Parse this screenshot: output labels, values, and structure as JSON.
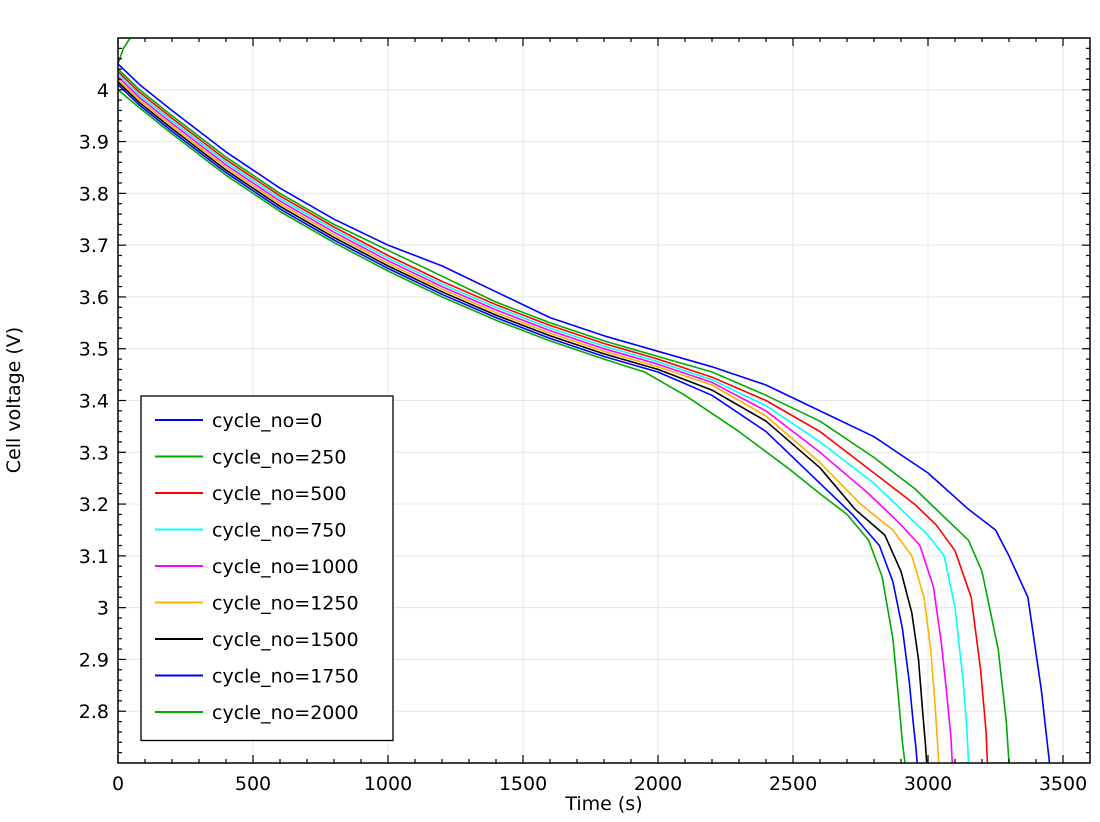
{
  "chart_data": {
    "type": "line",
    "title": "",
    "xlabel": "Time (s)",
    "ylabel": "Cell voltage (V)",
    "xlim": [
      0,
      3600
    ],
    "ylim": [
      2.7,
      4.1
    ],
    "xticks": [
      0,
      500,
      1000,
      1500,
      2000,
      2500,
      3000,
      3500
    ],
    "xtick_labels": [
      "0",
      "500",
      "1000",
      "1500",
      "2000",
      "2500",
      "3000",
      "3500"
    ],
    "yticks": [
      2.8,
      2.9,
      3.0,
      3.1,
      3.2,
      3.3,
      3.4,
      3.5,
      3.6,
      3.7,
      3.8,
      3.9,
      4.0
    ],
    "ytick_labels": [
      "2.8",
      "2.9",
      "3",
      "3.1",
      "3.2",
      "3.3",
      "3.4",
      "3.5",
      "3.6",
      "3.7",
      "3.8",
      "3.9",
      "4"
    ],
    "grid": true,
    "legend_position": "bottom-left",
    "series": [
      {
        "name": "cycle_no=0",
        "color": "#0000ff",
        "x": [
          0,
          80,
          200,
          400,
          600,
          800,
          1000,
          1200,
          1400,
          1600,
          1800,
          2000,
          2200,
          2400,
          2600,
          2800,
          3000,
          3150,
          3250,
          3300,
          3370,
          3420,
          3450
        ],
        "y": [
          4.05,
          4.01,
          3.96,
          3.88,
          3.81,
          3.75,
          3.7,
          3.66,
          3.61,
          3.56,
          3.525,
          3.495,
          3.465,
          3.43,
          3.38,
          3.33,
          3.26,
          3.19,
          3.15,
          3.1,
          3.02,
          2.84,
          2.7
        ]
      },
      {
        "name": "cycle_no=250",
        "color": "#00aa00",
        "x": [
          0,
          80,
          200,
          400,
          600,
          800,
          1000,
          1200,
          1400,
          1600,
          1800,
          2000,
          2200,
          2400,
          2600,
          2800,
          2950,
          3050,
          3150,
          3200,
          3260,
          3290,
          3300
        ],
        "y": [
          4.04,
          4.0,
          3.95,
          3.87,
          3.8,
          3.74,
          3.69,
          3.64,
          3.59,
          3.55,
          3.515,
          3.485,
          3.455,
          3.41,
          3.36,
          3.29,
          3.23,
          3.18,
          3.13,
          3.07,
          2.92,
          2.78,
          2.7
        ]
      },
      {
        "name": "cycle_no=500",
        "color": "#ff0000",
        "x": [
          0,
          80,
          200,
          400,
          600,
          800,
          1000,
          1200,
          1400,
          1600,
          1800,
          2000,
          2200,
          2400,
          2600,
          2800,
          2950,
          3030,
          3100,
          3160,
          3195,
          3215,
          3220
        ],
        "y": [
          4.035,
          3.995,
          3.945,
          3.865,
          3.795,
          3.735,
          3.68,
          3.63,
          3.585,
          3.545,
          3.51,
          3.48,
          3.445,
          3.4,
          3.34,
          3.26,
          3.2,
          3.16,
          3.11,
          3.02,
          2.88,
          2.76,
          2.7
        ]
      },
      {
        "name": "cycle_no=750",
        "color": "#00ffff",
        "x": [
          0,
          80,
          200,
          400,
          600,
          800,
          1000,
          1200,
          1400,
          1600,
          1800,
          2000,
          2200,
          2400,
          2600,
          2800,
          2920,
          3000,
          3060,
          3100,
          3130,
          3145,
          3150
        ],
        "y": [
          4.03,
          3.99,
          3.94,
          3.86,
          3.79,
          3.73,
          3.675,
          3.625,
          3.58,
          3.54,
          3.505,
          3.475,
          3.44,
          3.39,
          3.32,
          3.24,
          3.18,
          3.14,
          3.1,
          3.0,
          2.86,
          2.76,
          2.7
        ]
      },
      {
        "name": "cycle_no=1000",
        "color": "#ff00ff",
        "x": [
          0,
          80,
          200,
          400,
          600,
          800,
          1000,
          1200,
          1400,
          1600,
          1800,
          2000,
          2200,
          2400,
          2600,
          2780,
          2900,
          2970,
          3020,
          3050,
          3070,
          3085,
          3090
        ],
        "y": [
          4.025,
          3.985,
          3.935,
          3.855,
          3.785,
          3.725,
          3.67,
          3.62,
          3.575,
          3.535,
          3.5,
          3.47,
          3.435,
          3.38,
          3.3,
          3.22,
          3.16,
          3.12,
          3.04,
          2.93,
          2.83,
          2.75,
          2.7
        ]
      },
      {
        "name": "cycle_no=1250",
        "color": "#ffb000",
        "x": [
          0,
          80,
          200,
          400,
          600,
          800,
          1000,
          1200,
          1400,
          1600,
          1800,
          2000,
          2200,
          2400,
          2600,
          2750,
          2870,
          2940,
          2985,
          3010,
          3025,
          3035,
          3040
        ],
        "y": [
          4.02,
          3.98,
          3.93,
          3.85,
          3.78,
          3.72,
          3.665,
          3.615,
          3.57,
          3.53,
          3.495,
          3.465,
          3.43,
          3.37,
          3.28,
          3.2,
          3.15,
          3.1,
          3.02,
          2.92,
          2.82,
          2.74,
          2.7
        ]
      },
      {
        "name": "cycle_no=1500",
        "color": "#000000",
        "x": [
          0,
          80,
          200,
          400,
          600,
          800,
          1000,
          1200,
          1400,
          1600,
          1800,
          2000,
          2200,
          2400,
          2600,
          2730,
          2840,
          2900,
          2940,
          2965,
          2980,
          2990,
          2995
        ],
        "y": [
          4.015,
          3.975,
          3.925,
          3.845,
          3.775,
          3.715,
          3.66,
          3.61,
          3.565,
          3.525,
          3.49,
          3.46,
          3.42,
          3.36,
          3.27,
          3.19,
          3.14,
          3.07,
          2.99,
          2.9,
          2.8,
          2.74,
          2.7
        ]
      },
      {
        "name": "cycle_no=1750",
        "color": "#0000ff",
        "x": [
          0,
          80,
          200,
          400,
          600,
          800,
          1000,
          1200,
          1400,
          1600,
          1800,
          2000,
          2200,
          2400,
          2580,
          2720,
          2820,
          2870,
          2905,
          2930,
          2945,
          2955,
          2960
        ],
        "y": [
          4.01,
          3.97,
          3.92,
          3.84,
          3.77,
          3.71,
          3.655,
          3.605,
          3.56,
          3.52,
          3.485,
          3.455,
          3.41,
          3.34,
          3.25,
          3.18,
          3.12,
          3.05,
          2.96,
          2.86,
          2.78,
          2.73,
          2.7
        ]
      },
      {
        "name": "cycle_no=2000",
        "color": "#00aa00",
        "x": [
          0,
          80,
          200,
          400,
          600,
          800,
          1000,
          1200,
          1400,
          1600,
          1800,
          1950,
          2100,
          2300,
          2480,
          2600,
          2700,
          2780,
          2830,
          2870,
          2890,
          2905,
          2915
        ],
        "y": [
          4.0,
          3.965,
          3.915,
          3.835,
          3.765,
          3.705,
          3.65,
          3.6,
          3.555,
          3.515,
          3.48,
          3.455,
          3.41,
          3.34,
          3.27,
          3.22,
          3.18,
          3.13,
          3.06,
          2.94,
          2.83,
          2.74,
          2.7
        ]
      }
    ],
    "extra_line": {
      "color": "#00aa00",
      "x": [
        0,
        20,
        45
      ],
      "y": [
        4.05,
        4.08,
        4.1
      ]
    }
  }
}
